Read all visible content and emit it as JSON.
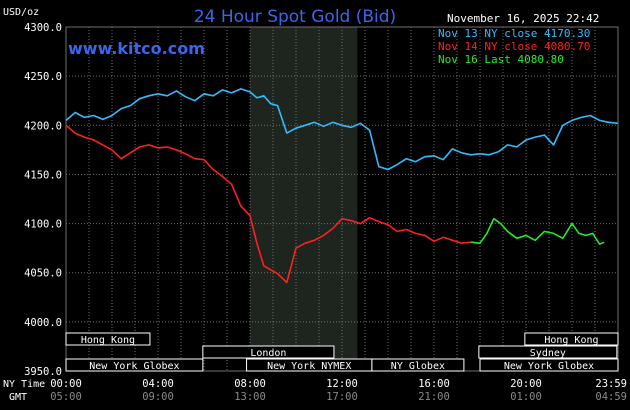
{
  "chart_data": {
    "type": "line",
    "title": "24 Hour Spot Gold (Bid)",
    "watermark": "www.kitco.com",
    "timestamp": "November 16, 2025 22:42",
    "ylabel": "USD/oz",
    "ylim": [
      3950,
      4300
    ],
    "y_ticks": [
      "4300.0",
      "4250.0",
      "4200.0",
      "4150.0",
      "4100.0",
      "4050.0",
      "4000.0",
      "3950.0"
    ],
    "y_tick_values": [
      4300,
      4250,
      4200,
      4150,
      4100,
      4050,
      4000,
      3950
    ],
    "xlim": [
      0,
      24
    ],
    "x_ticks_ny": [
      "00:00",
      "04:00",
      "08:00",
      "12:00",
      "16:00",
      "20:00",
      "23:59"
    ],
    "x_ticks_gmt": [
      "05:00",
      "09:00",
      "13:00",
      "17:00",
      "21:00",
      "01:00",
      "04:59"
    ],
    "x_tick_hours": [
      0,
      4,
      8,
      12,
      16,
      20,
      23.98
    ],
    "row_labels": {
      "ny_time": "NY Time",
      "gmt": "GMT"
    },
    "grid": true,
    "shaded_region_hours": [
      8.0,
      12.67
    ],
    "colors": {
      "background": "#000000",
      "grid": "#6e6e6e",
      "shade": "#1e241e",
      "title": "#3a66ee",
      "watermark": "#3a66ee",
      "axis_text": "#ffffff",
      "session_text": "#ffffff",
      "session_box": "#ffffff"
    },
    "legend": {
      "position": "top-right",
      "entries": [
        {
          "label": "Nov 13 NY close 4170.30",
          "color": "#33bbff"
        },
        {
          "label": "Nov 14 NY close 4080.70",
          "color": "#ff2020"
        },
        {
          "label": "Nov 16 Last 4080.80",
          "color": "#22ee22"
        }
      ]
    },
    "series": [
      {
        "color": "#33bbff",
        "x": [
          0,
          0.4,
          0.8,
          1.2,
          1.6,
          2,
          2.4,
          2.8,
          3.2,
          3.6,
          4,
          4.4,
          4.8,
          5.2,
          5.6,
          6,
          6.4,
          6.8,
          7.2,
          7.6,
          8,
          8.3,
          8.6,
          8.9,
          9.2,
          9.6,
          10,
          10.4,
          10.8,
          11.2,
          11.6,
          12,
          12.4,
          12.8,
          13.2,
          13.6,
          14,
          14.4,
          14.8,
          15.2,
          15.6,
          16,
          16.4,
          16.8,
          17.2,
          17.6,
          18,
          18.4,
          18.8,
          19.2,
          19.6,
          20,
          20.4,
          20.8,
          21.2,
          21.6,
          22,
          22.4,
          22.8,
          23.2,
          23.6,
          24
        ],
        "y": [
          4205,
          4213,
          4208,
          4210,
          4206,
          4210,
          4217,
          4220,
          4227,
          4230,
          4232,
          4230,
          4235,
          4229,
          4225,
          4232,
          4230,
          4236,
          4233,
          4237,
          4234,
          4228,
          4230,
          4222,
          4220,
          4192,
          4197,
          4200,
          4203,
          4199,
          4203,
          4200,
          4198,
          4202,
          4195,
          4158,
          4155,
          4160,
          4166,
          4163,
          4168,
          4169,
          4165,
          4176,
          4172,
          4170,
          4171,
          4170,
          4173,
          4180,
          4178,
          4185,
          4188,
          4190,
          4180,
          4200,
          4205,
          4208,
          4210,
          4205,
          4203,
          4202
        ]
      },
      {
        "color": "#ff2020",
        "x": [
          0,
          0.4,
          0.8,
          1.2,
          1.6,
          2,
          2.4,
          2.8,
          3.2,
          3.6,
          4,
          4.4,
          4.8,
          5.2,
          5.6,
          6,
          6.4,
          6.8,
          7.2,
          7.6,
          8,
          8.3,
          8.6,
          8.9,
          9.2,
          9.6,
          10,
          10.4,
          10.8,
          11.2,
          11.6,
          12,
          12.4,
          12.8,
          13.2,
          13.6,
          14,
          14.4,
          14.8,
          15.2,
          15.6,
          16,
          16.4,
          16.8,
          17.2,
          17.6
        ],
        "y": [
          4200,
          4192,
          4188,
          4185,
          4180,
          4175,
          4166,
          4172,
          4178,
          4180,
          4177,
          4178,
          4175,
          4171,
          4166,
          4165,
          4155,
          4148,
          4140,
          4118,
          4108,
          4080,
          4057,
          4053,
          4049,
          4040,
          4075,
          4080,
          4083,
          4088,
          4095,
          4105,
          4103,
          4100,
          4106,
          4102,
          4099,
          4092,
          4094,
          4090,
          4088,
          4082,
          4086,
          4083,
          4080,
          4081
        ]
      },
      {
        "color": "#22ee22",
        "x": [
          17.6,
          18,
          18.3,
          18.6,
          18.9,
          19.2,
          19.6,
          20,
          20.4,
          20.8,
          21.2,
          21.6,
          22,
          22.3,
          22.6,
          22.9,
          23.2,
          23.4
        ],
        "y": [
          4081,
          4080,
          4090,
          4105,
          4100,
          4092,
          4085,
          4088,
          4083,
          4092,
          4090,
          4085,
          4100,
          4090,
          4088,
          4090,
          4079,
          4081
        ]
      }
    ]
  },
  "sessions": [
    {
      "label": "Hong Kong",
      "start_hour": 0,
      "end_hour": 3.65
    },
    {
      "label": "London",
      "start_hour": 5.95,
      "end_hour": 11.65
    },
    {
      "label": "New York Globex",
      "start_hour": 0,
      "end_hour": 5.95
    },
    {
      "label": "New York NYMEX",
      "start_hour": 7.85,
      "end_hour": 13.3
    },
    {
      "label": "NY Globex",
      "start_hour": 13.3,
      "end_hour": 17.3
    },
    {
      "label": "Hong Kong",
      "start_hour": 19.95,
      "end_hour": 24
    },
    {
      "label": "Sydney",
      "start_hour": 17.95,
      "end_hour": 23.95
    },
    {
      "label": "New York Globex",
      "start_hour": 18.0,
      "end_hour": 24
    }
  ]
}
